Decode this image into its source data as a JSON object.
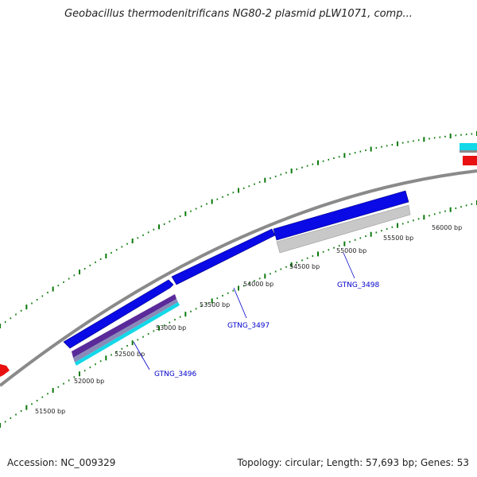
{
  "title": "Geobacillus thermodenitrificans NG80-2 plasmid pLW1071, comp...",
  "footer": {
    "accession": "Accession: NC_009329",
    "summary": "Topology: circular; Length: 57,693 bp; Genes: 53"
  },
  "colors": {
    "backbone": "#8a8a8a",
    "forward_cds": "#0a0ae6",
    "reverse_cds": "#b8b8b8",
    "tick": "#0a7a0a",
    "gene_label": "#0000cc",
    "red_feature": "#e81010",
    "cyan_feature": "#12d8e8"
  },
  "tick_labels": [
    "51500 bp",
    "52000 bp",
    "52500 bp",
    "53000 bp",
    "53500 bp",
    "54000 bp",
    "54500 bp",
    "55000 bp",
    "55500 bp",
    "56000 bp"
  ],
  "gene_labels": [
    "GTNG_3496",
    "GTNG_3497",
    "GTNG_3498"
  ]
}
